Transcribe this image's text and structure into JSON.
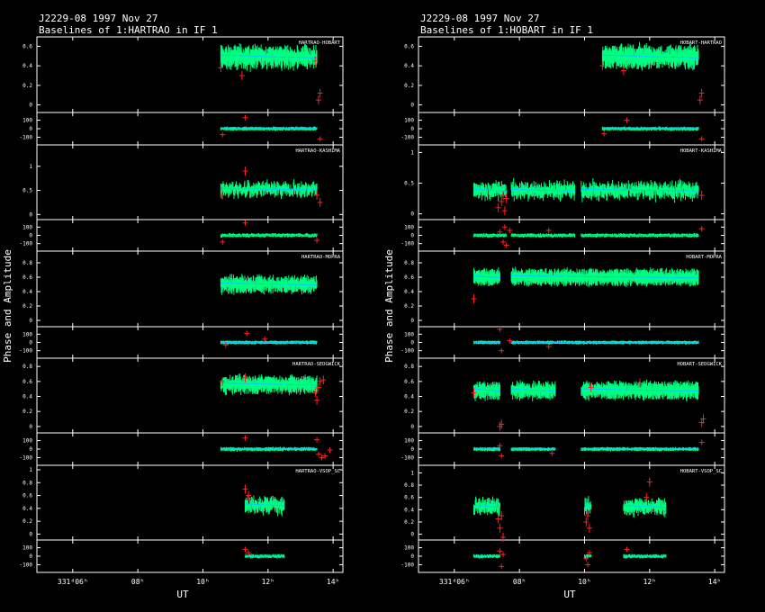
{
  "colors": {
    "background": "#000000",
    "axes": "#ffffff",
    "data": "#00ff80",
    "model": "#00c8ff",
    "flagged": "#ff2020"
  },
  "y_axis_label": "Phase and Amplitude",
  "x_axis_label": "UT",
  "x_ticks": [
    {
      "t": 6,
      "label": "331ᵈ06ʰ"
    },
    {
      "t": 8,
      "label": "08ʰ"
    },
    {
      "t": 10,
      "label": "10ʰ"
    },
    {
      "t": 12,
      "label": "12ʰ"
    },
    {
      "t": 14,
      "label": "14ʰ"
    }
  ],
  "amp_ticks": [
    0,
    0.2,
    0.4,
    0.6,
    0.8,
    1
  ],
  "amp_tick_labels": [
    "0",
    "0.2",
    "0.4",
    "0.6",
    "0.8",
    "1"
  ],
  "amp_ticks_half": [
    0,
    0.5,
    1
  ],
  "amp_tick_labels_half": [
    "0",
    "0.5",
    "1"
  ],
  "phase_ticks": [
    -100,
    0,
    100
  ],
  "phase_tick_labels": [
    "-100",
    "0",
    "100"
  ],
  "chart_data": [
    {
      "type": "scatter",
      "title_line1": "J2229-08  1997 Nov 27",
      "title_line2": "Baselines of 1:HARTRAO in IF 1",
      "xlim": [
        4.9,
        14.3
      ],
      "baselines": [
        {
          "name": "HARTRAO-HOBART",
          "amp_ylim": [
            -0.05,
            0.65
          ],
          "amp_ticks": "fine",
          "segments": [
            [
              10.55,
              13.5
            ]
          ],
          "amp_mean": 0.49,
          "amp_scatter": 0.05,
          "phase_scatter": 10,
          "flagged_amp": [
            [
              13.55,
              0.05
            ],
            [
              13.6,
              0.12
            ],
            [
              10.55,
              0.38
            ],
            [
              11.2,
              0.3
            ],
            [
              13.45,
              0.45
            ]
          ],
          "flagged_phase": [
            [
              11.3,
              130
            ],
            [
              10.6,
              -70
            ],
            [
              13.6,
              -120
            ]
          ]
        },
        {
          "name": "HARTRAO-KASHIMA",
          "amp_ylim": [
            -0.05,
            1.35
          ],
          "amp_ticks": "half",
          "segments": [
            [
              10.55,
              13.5
            ]
          ],
          "amp_mean": 0.52,
          "amp_scatter": 0.14,
          "phase_scatter": 15,
          "flagged_amp": [
            [
              10.6,
              0.4
            ],
            [
              11.3,
              0.9
            ],
            [
              13.5,
              0.4
            ],
            [
              13.6,
              0.25
            ]
          ],
          "flagged_phase": [
            [
              11.3,
              150
            ],
            [
              10.6,
              -80
            ],
            [
              13.5,
              -60
            ]
          ]
        },
        {
          "name": "HARTRAO-MOPRA",
          "amp_ylim": [
            -0.05,
            0.9
          ],
          "amp_ticks": "fine",
          "segments": [
            [
              10.55,
              13.5
            ]
          ],
          "amp_mean": 0.5,
          "amp_scatter": 0.05,
          "phase_scatter": 10,
          "flagged_amp": [],
          "flagged_phase": [
            [
              11.35,
              110
            ],
            [
              11.9,
              40
            ],
            [
              10.7,
              -30
            ]
          ]
        },
        {
          "name": "HARTRAO-SEDGWICK",
          "amp_ylim": [
            -0.05,
            0.85
          ],
          "amp_ticks": "fine",
          "segments": [
            [
              10.55,
              13.5
            ]
          ],
          "amp_mean": 0.56,
          "amp_scatter": 0.05,
          "phase_scatter": 12,
          "flagged_amp": [
            [
              13.45,
              0.45
            ],
            [
              13.5,
              0.35
            ],
            [
              13.55,
              0.52
            ],
            [
              13.6,
              0.6
            ],
            [
              13.7,
              0.62
            ],
            [
              10.6,
              0.6
            ],
            [
              11.3,
              0.65
            ]
          ],
          "flagged_phase": [
            [
              11.3,
              130
            ],
            [
              13.5,
              110
            ],
            [
              13.55,
              -60
            ],
            [
              13.65,
              -100
            ],
            [
              13.75,
              -80
            ],
            [
              13.9,
              -10
            ]
          ]
        },
        {
          "name": "HARTRAO-VSOP_SC",
          "amp_ylim": [
            -0.05,
            1.0
          ],
          "amp_ticks": "fine",
          "segments": [
            [
              11.3,
              12.5
            ]
          ],
          "amp_mean": 0.45,
          "amp_scatter": 0.1,
          "phase_scatter": 15,
          "flagged_amp": [
            [
              11.3,
              0.7
            ],
            [
              11.4,
              0.6
            ]
          ],
          "flagged_phase": [
            [
              11.3,
              80
            ],
            [
              11.4,
              40
            ]
          ]
        }
      ]
    },
    {
      "type": "scatter",
      "title_line1": "J2229-08  1997 Nov 27",
      "title_line2": "Baselines of 1:HOBART in IF 1",
      "xlim": [
        4.9,
        14.3
      ],
      "baselines": [
        {
          "name": "HOBART-HARTRAO",
          "amp_ylim": [
            -0.05,
            0.65
          ],
          "amp_ticks": "fine",
          "segments": [
            [
              10.55,
              13.5
            ]
          ],
          "amp_mean": 0.49,
          "amp_scatter": 0.05,
          "phase_scatter": 10,
          "flagged_amp": [
            [
              13.55,
              0.05
            ],
            [
              13.6,
              0.12
            ],
            [
              10.55,
              0.4
            ],
            [
              11.2,
              0.35
            ]
          ],
          "flagged_phase": [
            [
              11.3,
              100
            ],
            [
              10.6,
              -60
            ],
            [
              13.6,
              -120
            ]
          ]
        },
        {
          "name": "HOBART-KASHIMA",
          "amp_ylim": [
            -0.05,
            1.05
          ],
          "amp_ticks": "half",
          "segments": [
            [
              6.6,
              7.6
            ],
            [
              7.75,
              9.7
            ],
            [
              9.9,
              13.5
            ]
          ],
          "amp_mean": 0.38,
          "amp_scatter": 0.12,
          "phase_scatter": 15,
          "flagged_amp": [
            [
              7.35,
              0.1
            ],
            [
              7.45,
              0.2
            ],
            [
              7.55,
              0.05
            ],
            [
              7.6,
              0.25
            ],
            [
              7.5,
              0.3
            ],
            [
              13.6,
              0.3
            ]
          ],
          "flagged_phase": [
            [
              7.4,
              40
            ],
            [
              7.5,
              -80
            ],
            [
              7.55,
              100
            ],
            [
              7.6,
              -120
            ],
            [
              7.7,
              60
            ],
            [
              13.6,
              80
            ],
            [
              8.9,
              60
            ]
          ]
        },
        {
          "name": "HOBART-MOPRA",
          "amp_ylim": [
            -0.05,
            0.9
          ],
          "amp_ticks": "fine",
          "segments": [
            [
              6.6,
              7.4
            ],
            [
              7.75,
              13.5
            ]
          ],
          "amp_mean": 0.6,
          "amp_scatter": 0.03,
          "phase_scatter": 8,
          "flagged_amp": [
            [
              6.6,
              0.3
            ]
          ],
          "flagged_phase": [
            [
              7.4,
              160
            ],
            [
              7.45,
              -100
            ],
            [
              7.7,
              20
            ],
            [
              8.9,
              -50
            ]
          ]
        },
        {
          "name": "HOBART-SEDGWICK",
          "amp_ylim": [
            -0.05,
            0.85
          ],
          "amp_ticks": "fine",
          "segments": [
            [
              6.6,
              7.4
            ],
            [
              7.75,
              9.1
            ],
            [
              9.9,
              13.5
            ]
          ],
          "amp_mean": 0.48,
          "amp_scatter": 0.04,
          "phase_scatter": 8,
          "flagged_amp": [
            [
              7.4,
              0.0
            ],
            [
              7.45,
              0.03
            ],
            [
              13.6,
              0.05
            ],
            [
              13.65,
              0.1
            ],
            [
              6.6,
              0.45
            ],
            [
              10.2,
              0.52
            ],
            [
              11.7,
              0.58
            ]
          ],
          "flagged_phase": [
            [
              7.4,
              40
            ],
            [
              7.45,
              -80
            ],
            [
              13.6,
              80
            ],
            [
              9.0,
              -50
            ]
          ]
        },
        {
          "name": "HOBART-VSOP_SC",
          "amp_ylim": [
            -0.05,
            1.05
          ],
          "amp_ticks": "fine",
          "segments": [
            [
              6.6,
              7.4
            ],
            [
              10.0,
              10.2
            ],
            [
              11.2,
              12.5
            ]
          ],
          "amp_mean": 0.45,
          "amp_scatter": 0.1,
          "phase_scatter": 12,
          "flagged_amp": [
            [
              7.35,
              0.25
            ],
            [
              7.4,
              0.1
            ],
            [
              7.45,
              0.3
            ],
            [
              7.5,
              -0.05
            ],
            [
              10.05,
              0.2
            ],
            [
              10.1,
              0.3
            ],
            [
              10.15,
              0.1
            ],
            [
              12.0,
              0.85
            ],
            [
              11.9,
              0.6
            ]
          ],
          "flagged_phase": [
            [
              7.4,
              60
            ],
            [
              7.45,
              -120
            ],
            [
              7.5,
              20
            ],
            [
              10.05,
              -30
            ],
            [
              10.1,
              -100
            ],
            [
              10.15,
              40
            ],
            [
              11.3,
              80
            ]
          ]
        }
      ]
    }
  ]
}
